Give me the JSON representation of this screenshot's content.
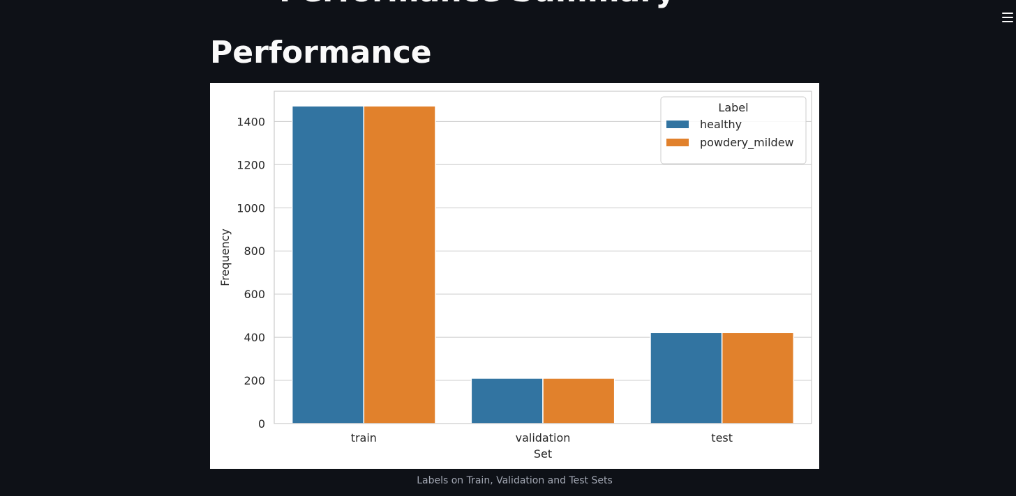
{
  "page": {
    "cut_title": "Performance Summary",
    "title": "Performance",
    "caption": "Labels on Train, Validation and Test Sets"
  },
  "menu": {
    "icon": "hamburger-menu-icon"
  },
  "chart_data": {
    "type": "bar",
    "categories": [
      "train",
      "validation",
      "test"
    ],
    "series": [
      {
        "name": "healthy",
        "values": [
          1472,
          210,
          422
        ],
        "color": "#3274a1"
      },
      {
        "name": "powdery_mildew",
        "values": [
          1472,
          210,
          422
        ],
        "color": "#e1812c"
      }
    ],
    "xlabel": "Set",
    "ylabel": "Frequency",
    "ylim": [
      0,
      1540
    ],
    "yticks": [
      0,
      200,
      400,
      600,
      800,
      1000,
      1200,
      1400
    ],
    "legend_title": "Label",
    "legend_position": "top-right",
    "grid": true
  }
}
